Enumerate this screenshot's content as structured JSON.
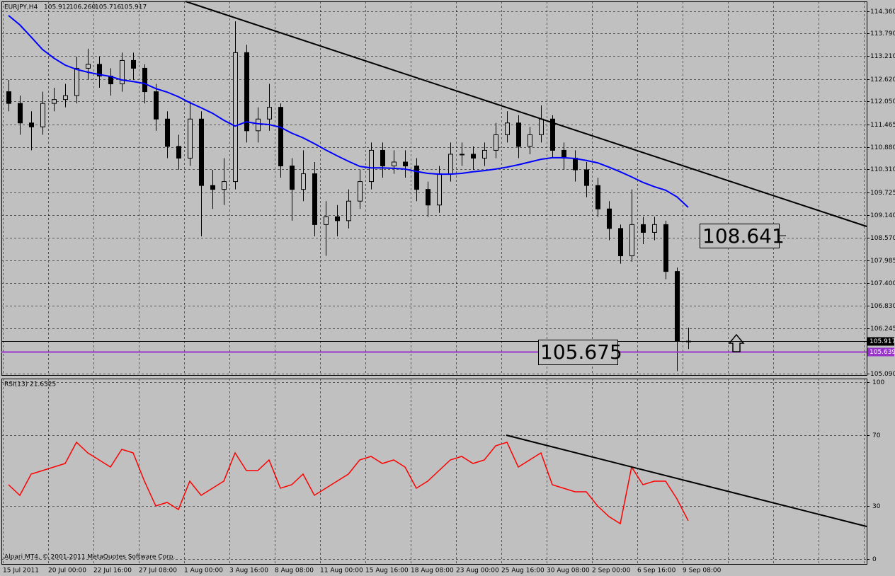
{
  "chart_data": [
    {
      "type": "candlestick",
      "title": "EURJPY,H4",
      "header_prices": [
        "105.912",
        "106.260",
        "105.716",
        "105.917"
      ],
      "open": [
        112.3,
        112.0,
        111.5,
        111.4,
        112.0,
        112.1,
        112.2,
        112.9,
        113.0,
        112.7,
        112.5,
        113.1,
        112.9,
        112.3,
        111.6,
        110.9,
        110.6,
        111.6,
        109.9,
        109.8,
        110.0,
        113.3,
        111.3,
        111.6,
        111.9,
        110.4,
        109.8,
        110.2,
        108.9,
        109.1,
        109.0,
        109.5,
        110.0,
        110.8,
        110.4,
        110.5,
        110.4,
        109.8,
        109.4,
        110.2,
        110.7,
        110.7,
        110.6,
        110.8,
        111.2,
        111.5,
        110.9,
        111.2,
        111.6,
        110.8,
        110.6,
        110.3,
        109.9,
        109.3,
        108.8,
        108.1,
        108.9,
        108.7,
        108.9,
        107.7,
        105.912
      ],
      "high": [
        112.6,
        112.2,
        111.8,
        112.3,
        112.4,
        112.5,
        113.2,
        113.4,
        113.2,
        112.9,
        113.3,
        113.3,
        113.0,
        112.5,
        111.8,
        111.2,
        112.05,
        111.8,
        110.3,
        110.6,
        114.1,
        113.5,
        111.9,
        112.5,
        112.0,
        110.6,
        110.8,
        110.5,
        109.5,
        109.4,
        109.8,
        110.3,
        111.0,
        111.0,
        110.8,
        110.8,
        110.6,
        110.0,
        110.4,
        111.0,
        111.0,
        110.9,
        111.0,
        111.5,
        111.8,
        111.7,
        111.4,
        111.95,
        111.7,
        111.0,
        110.8,
        110.5,
        110.1,
        109.5,
        108.9,
        109.8,
        109.1,
        109.1,
        109.0,
        107.8,
        106.26
      ],
      "low": [
        111.8,
        111.2,
        110.8,
        111.2,
        111.8,
        111.9,
        112.0,
        112.6,
        112.4,
        112.2,
        112.3,
        112.6,
        112.0,
        111.3,
        110.6,
        110.3,
        110.4,
        108.6,
        109.3,
        109.4,
        109.8,
        111.0,
        111.0,
        111.3,
        110.1,
        109.0,
        109.5,
        108.6,
        108.1,
        108.6,
        108.8,
        109.3,
        109.8,
        110.1,
        110.2,
        110.1,
        109.5,
        109.1,
        109.2,
        110.0,
        110.4,
        110.3,
        110.4,
        110.6,
        111.0,
        110.6,
        110.7,
        111.0,
        110.6,
        110.3,
        110.0,
        109.6,
        109.1,
        108.5,
        107.9,
        107.95,
        108.4,
        108.5,
        107.5,
        105.15,
        105.716
      ],
      "close": [
        112.0,
        111.5,
        111.4,
        112.0,
        112.1,
        112.2,
        112.9,
        113.0,
        112.7,
        112.5,
        113.1,
        112.9,
        112.3,
        111.6,
        110.9,
        110.6,
        111.6,
        109.9,
        109.8,
        110.0,
        113.3,
        111.3,
        111.6,
        111.9,
        110.4,
        109.8,
        110.2,
        108.9,
        109.1,
        109.0,
        109.5,
        110.0,
        110.8,
        110.4,
        110.5,
        110.4,
        109.8,
        109.4,
        110.2,
        110.7,
        110.7,
        110.6,
        110.8,
        111.2,
        111.5,
        110.9,
        111.2,
        111.6,
        110.8,
        110.6,
        110.3,
        109.9,
        109.3,
        108.8,
        108.1,
        108.9,
        108.7,
        108.9,
        107.7,
        105.91,
        105.917
      ],
      "color_up": "#c0c0c0",
      "color_down": "#000000",
      "moving_average": {
        "color": "#0000ff",
        "values": [
          114.25,
          114.01,
          113.7,
          113.38,
          113.16,
          112.98,
          112.87,
          112.8,
          112.74,
          112.69,
          112.6,
          112.56,
          112.51,
          112.38,
          112.29,
          112.17,
          112.02,
          111.89,
          111.75,
          111.57,
          111.42,
          111.53,
          111.48,
          111.46,
          111.39,
          111.24,
          111.12,
          110.97,
          110.81,
          110.66,
          110.52,
          110.39,
          110.35,
          110.35,
          110.34,
          110.32,
          110.26,
          110.21,
          110.19,
          110.19,
          110.21,
          110.25,
          110.28,
          110.32,
          110.37,
          110.43,
          110.5,
          110.57,
          110.61,
          110.61,
          110.59,
          110.54,
          110.48,
          110.37,
          110.25,
          110.12,
          109.98,
          109.87,
          109.78,
          109.61,
          109.34
        ]
      },
      "levels": [
        {
          "value": 105.639,
          "color": "#9933cc"
        }
      ],
      "annotations": [
        "108.641",
        "105.675"
      ],
      "ylim": [
        105.05,
        114.61
      ],
      "yticks": [
        {
          "value": 114.36,
          "label": "114.360"
        },
        {
          "value": 113.79,
          "label": "113.790"
        },
        {
          "value": 113.21,
          "label": "113.210"
        },
        {
          "value": 112.62,
          "label": "112.620"
        },
        {
          "value": 112.05,
          "label": "112.050"
        },
        111.465,
        {
          "value": 110.88,
          "label": "110.880"
        },
        {
          "value": 110.31,
          "label": "110.310"
        },
        109.725,
        {
          "value": 109.14,
          "label": "109.140"
        },
        {
          "value": 108.57,
          "label": "108.570"
        },
        107.985,
        {
          "value": 107.4,
          "label": "107.400"
        },
        {
          "value": 106.83,
          "label": "106.830"
        },
        106.245,
        {
          "value": 105.09,
          "label": "105.090"
        }
      ]
    },
    {
      "type": "line",
      "title": "RSI(13)",
      "color": "#ff0000",
      "values": [
        42,
        36,
        48,
        50,
        52,
        54,
        66,
        60,
        56,
        52,
        62,
        60,
        44,
        30,
        32,
        28,
        44,
        36,
        40,
        44,
        60,
        50,
        50,
        56,
        40,
        42,
        48,
        36,
        40,
        44,
        48,
        56,
        58,
        54,
        56,
        52,
        40,
        44,
        50,
        56,
        58,
        54,
        56,
        64,
        66,
        52,
        56,
        60,
        42,
        40,
        38,
        38,
        30,
        24,
        20,
        52,
        42,
        44,
        44,
        34,
        21.6325
      ],
      "ylim": [
        -2.8,
        102
      ],
      "yticks": [
        100,
        70,
        30,
        0
      ],
      "xtick_labels": [
        "15 Jul 2011",
        "20 Jul 00:00",
        "22 Jul 16:00",
        "27 Jul 08:00",
        "1 Aug 00:00",
        "3 Aug 16:00",
        "8 Aug 08:00",
        "11 Aug 00:00",
        "15 Aug 16:00",
        "18 Aug 08:00",
        "23 Aug 00:00",
        "25 Aug 16:00",
        "30 Aug 08:00",
        "2 Sep 00:00",
        "6 Sep 16:00",
        "9 Sep 08:00"
      ]
    }
  ],
  "footer": "Alpari MT4, © 2001-2011 MetaQuotes Software Corp."
}
